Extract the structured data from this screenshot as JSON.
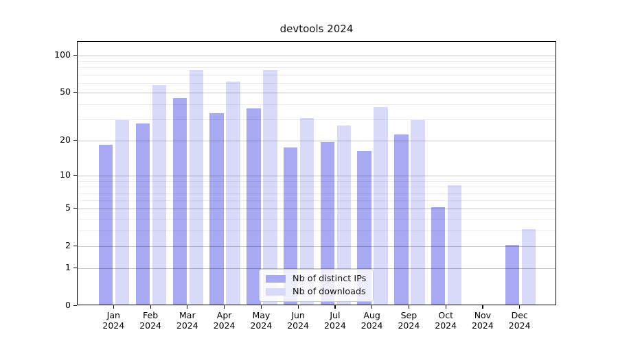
{
  "chart_data": {
    "type": "bar",
    "title": "devtools 2024",
    "y_scale": "log1p",
    "months": [
      "Jan",
      "Feb",
      "Mar",
      "Apr",
      "May",
      "Jun",
      "Jul",
      "Aug",
      "Sep",
      "Oct",
      "Nov",
      "Dec"
    ],
    "year": "2024",
    "categories": [
      "Jan 2024",
      "Feb 2024",
      "Mar 2024",
      "Apr 2024",
      "May 2024",
      "Jun 2024",
      "Jul 2024",
      "Aug 2024",
      "Sep 2024",
      "Oct 2024",
      "Nov 2024",
      "Dec 2024"
    ],
    "series": [
      {
        "name": "Nb of distinct IPs",
        "color": "#a8a9f3",
        "values": [
          18,
          27,
          44,
          33,
          36,
          17,
          19,
          16,
          22,
          5,
          0,
          2
        ]
      },
      {
        "name": "Nb of downloads",
        "color": "#d9dafa",
        "values": [
          29,
          56,
          75,
          60,
          75,
          30,
          26,
          37,
          29,
          8,
          0,
          3
        ]
      }
    ],
    "y_ticks_major": [
      0,
      1,
      2,
      5,
      10,
      20,
      50,
      100
    ],
    "y_ticks_minor": [
      3,
      4,
      6,
      7,
      8,
      9,
      30,
      40,
      60,
      70,
      80,
      90
    ],
    "ylim": [
      0,
      129
    ],
    "grid": {
      "axis": "y",
      "major_color": "rgba(0,0,0,0.24)",
      "minor_color": "rgba(0,0,0,0.08)",
      "on_top_of_bars": true
    },
    "legend": {
      "position": "lower center",
      "border_color": "#cccccc"
    },
    "spine_color": "#000000"
  }
}
